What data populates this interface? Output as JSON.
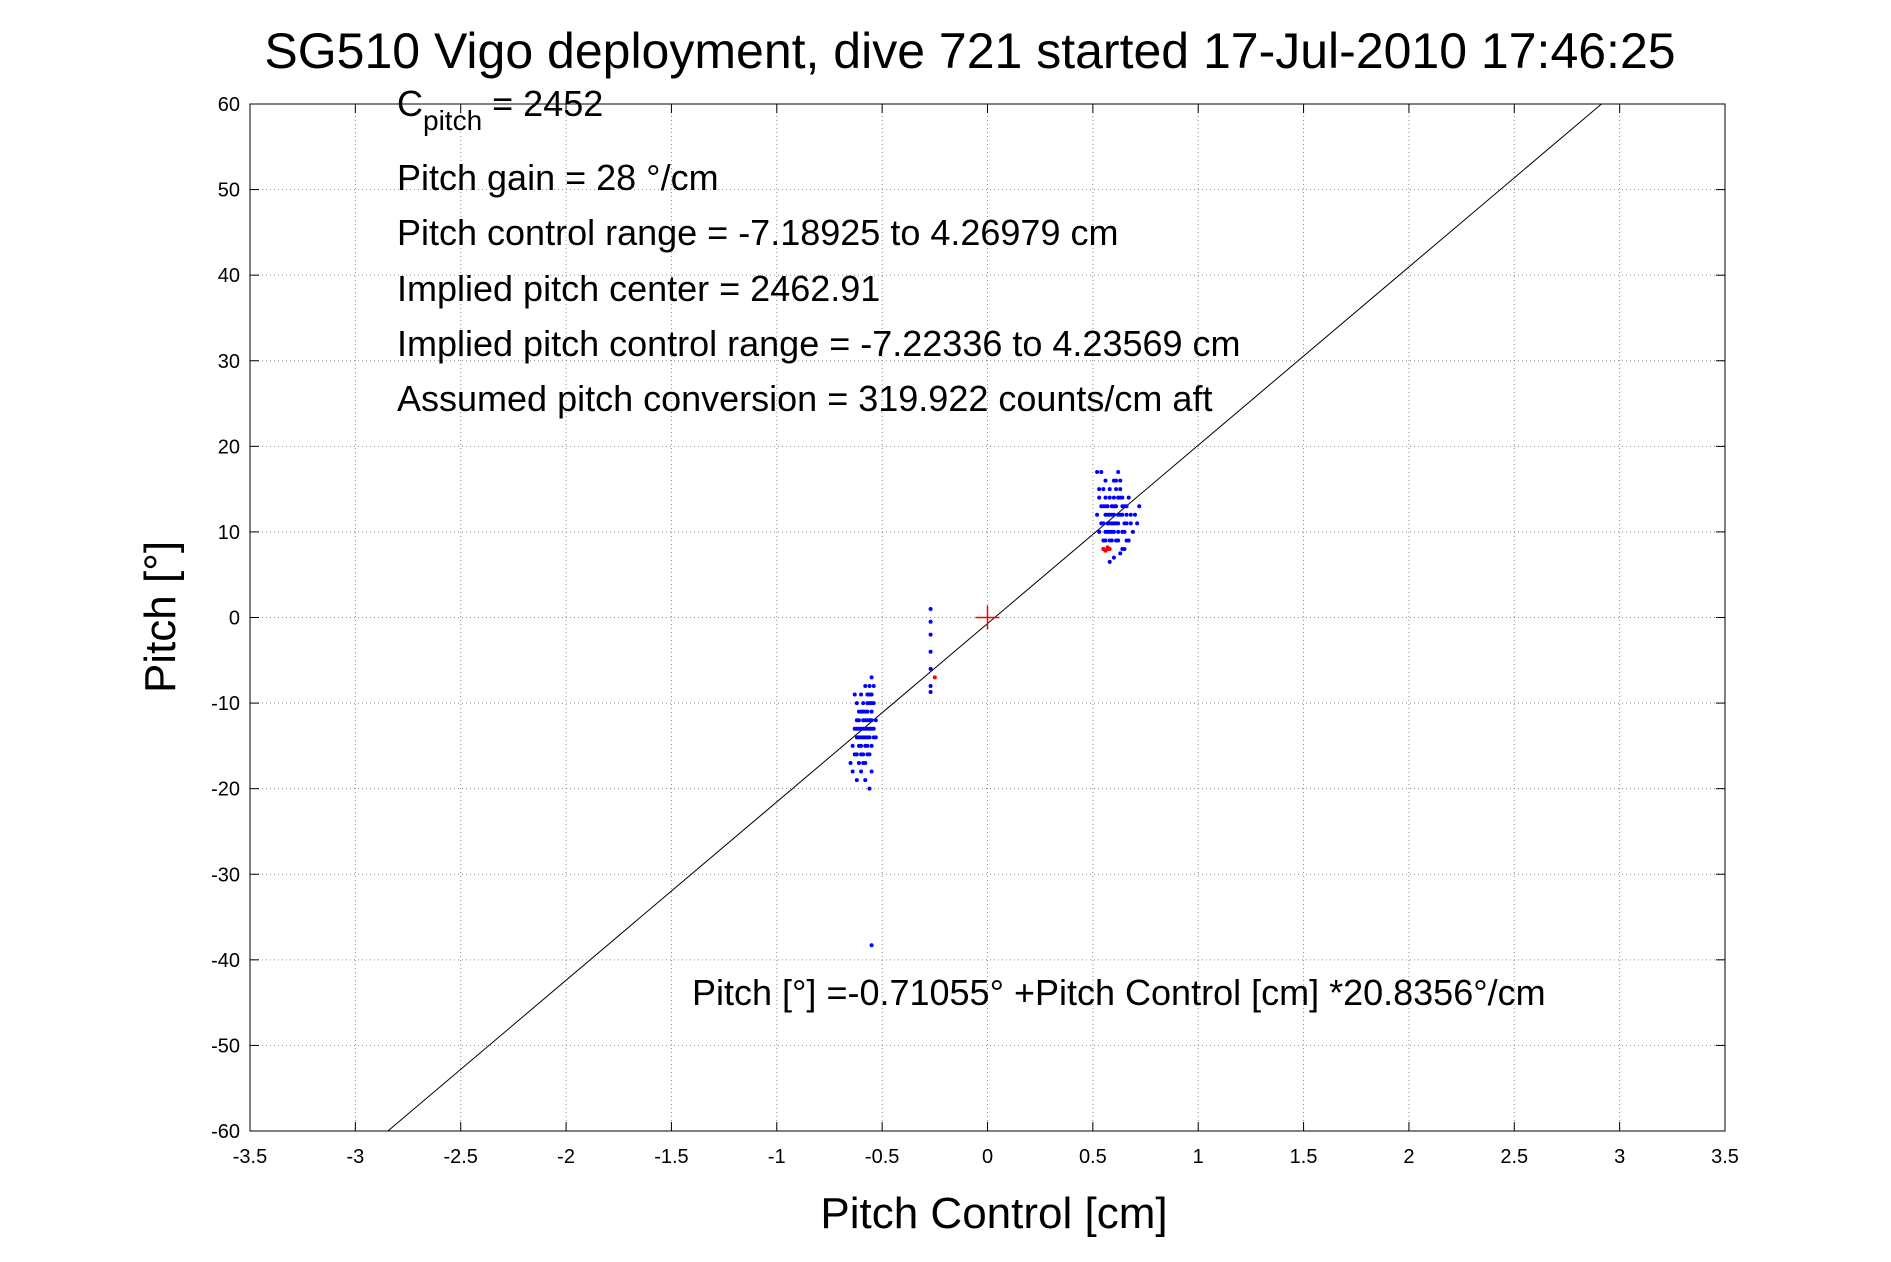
{
  "chart_data": {
    "type": "scatter",
    "title": "SG510 Vigo deployment, dive 721 started 17-Jul-2010 17:46:25",
    "xlabel": "Pitch Control [cm]",
    "ylabel": "Pitch [°]",
    "xlim": [
      -3.5,
      3.5
    ],
    "ylim": [
      -60,
      60
    ],
    "xticks": [
      -3.5,
      -3,
      -2.5,
      -2,
      -1.5,
      -1,
      -0.5,
      0,
      0.5,
      1,
      1.5,
      2,
      2.5,
      3,
      3.5
    ],
    "xtick_labels": [
      "-3.5",
      "-3",
      "-2.5",
      "-2",
      "-1.5",
      "-1",
      "-0.5",
      "0",
      "0.5",
      "1",
      "1.5",
      "2",
      "2.5",
      "3",
      "3.5"
    ],
    "yticks": [
      60,
      50,
      40,
      30,
      20,
      10,
      0,
      -10,
      -20,
      -30,
      -40,
      -50,
      -60
    ],
    "ytick_labels": [
      "60",
      "50",
      "40",
      "30",
      "20",
      "10",
      "0",
      "-10",
      "-20",
      "-30",
      "-40",
      "-50",
      "-60"
    ],
    "grid": true,
    "annotations": {
      "c_pitch_main": "C",
      "c_pitch_sub": "pitch",
      "c_pitch_value": " = 2452",
      "lines": [
        "Pitch gain = 28 °/cm",
        "Pitch control range = -7.18925 to 4.26979 cm",
        "Implied pitch center = 2462.91",
        "Implied pitch control range = -7.22336 to 4.23569 cm",
        "Assumed pitch conversion = 319.922 counts/cm aft"
      ],
      "fit_equation": "Pitch [°] =-0.71055° +Pitch Control [cm] *20.8356°/cm"
    },
    "fit_line": {
      "intercept": -0.71055,
      "slope": 20.8356,
      "color": "#000000"
    },
    "center_marker": {
      "x": 0,
      "y": 0,
      "color": "#ff0000"
    },
    "series": [
      {
        "color": "#0000ff",
        "points": [
          [
            -0.55,
            -7
          ],
          [
            -0.54,
            -8
          ],
          [
            -0.55,
            -9
          ],
          [
            -0.56,
            -10
          ],
          [
            -0.57,
            -11
          ],
          [
            -0.56,
            -12
          ],
          [
            -0.55,
            -13
          ],
          [
            -0.57,
            -14
          ],
          [
            -0.58,
            -12
          ],
          [
            -0.59,
            -13
          ],
          [
            -0.6,
            -14
          ],
          [
            -0.58,
            -15
          ],
          [
            -0.57,
            -16
          ],
          [
            -0.59,
            -17
          ],
          [
            -0.61,
            -15
          ],
          [
            -0.62,
            -16
          ],
          [
            -0.6,
            -18
          ],
          [
            -0.58,
            -19
          ],
          [
            -0.56,
            -20
          ],
          [
            -0.55,
            -18
          ],
          [
            -0.57,
            -9
          ],
          [
            -0.59,
            -10
          ],
          [
            -0.61,
            -11
          ],
          [
            -0.63,
            -13
          ],
          [
            -0.64,
            -15
          ],
          [
            -0.62,
            -12
          ],
          [
            -0.6,
            -11
          ],
          [
            -0.58,
            -8
          ],
          [
            -0.56,
            -9
          ],
          [
            -0.54,
            -10
          ],
          [
            -0.53,
            -12
          ],
          [
            -0.54,
            -14
          ],
          [
            -0.55,
            -15
          ],
          [
            -0.56,
            -16
          ],
          [
            -0.58,
            -17
          ],
          [
            -0.6,
            -16
          ],
          [
            -0.62,
            -14
          ],
          [
            -0.61,
            -13
          ],
          [
            -0.59,
            -12
          ],
          [
            -0.57,
            -13
          ],
          [
            -0.55,
            -11
          ],
          [
            -0.56,
            -14
          ],
          [
            -0.57,
            -12
          ],
          [
            -0.58,
            -13
          ],
          [
            -0.59,
            -14
          ],
          [
            -0.6,
            -13
          ],
          [
            -0.61,
            -12
          ],
          [
            -0.62,
            -10
          ],
          [
            -0.63,
            -9
          ],
          [
            -0.6,
            -9
          ],
          [
            -0.58,
            -11
          ],
          [
            -0.56,
            -8
          ],
          [
            -0.55,
            -10
          ],
          [
            -0.57,
            -15
          ],
          [
            -0.59,
            -16
          ],
          [
            -0.61,
            -17
          ],
          [
            -0.63,
            -16
          ],
          [
            -0.65,
            -17
          ],
          [
            -0.64,
            -18
          ],
          [
            -0.62,
            -19
          ],
          [
            -0.54,
            -13
          ],
          [
            -0.53,
            -14
          ],
          [
            -0.55,
            -12
          ],
          [
            -0.56,
            -13
          ],
          [
            -0.57,
            -10
          ],
          [
            -0.58,
            -14
          ],
          [
            -0.59,
            -11
          ],
          [
            -0.6,
            -15
          ],
          [
            -0.61,
            -14
          ],
          [
            -0.62,
            -13
          ],
          [
            -0.55,
            -38.3
          ],
          [
            -0.27,
            1
          ],
          [
            -0.27,
            -0.5
          ],
          [
            -0.27,
            -2
          ],
          [
            -0.27,
            -4
          ],
          [
            -0.27,
            -6
          ],
          [
            -0.27,
            -8
          ],
          [
            -0.27,
            -8.7
          ],
          [
            0.52,
            17
          ],
          [
            0.53,
            15
          ],
          [
            0.54,
            13
          ],
          [
            0.55,
            11
          ],
          [
            0.56,
            9
          ],
          [
            0.57,
            8
          ],
          [
            0.58,
            10
          ],
          [
            0.59,
            12
          ],
          [
            0.6,
            14
          ],
          [
            0.61,
            16
          ],
          [
            0.62,
            17
          ],
          [
            0.63,
            15
          ],
          [
            0.64,
            13
          ],
          [
            0.65,
            11
          ],
          [
            0.66,
            9
          ],
          [
            0.64,
            8
          ],
          [
            0.62,
            10
          ],
          [
            0.6,
            12
          ],
          [
            0.58,
            14
          ],
          [
            0.56,
            16
          ],
          [
            0.54,
            17
          ],
          [
            0.55,
            15
          ],
          [
            0.57,
            13
          ],
          [
            0.59,
            11
          ],
          [
            0.61,
            9
          ],
          [
            0.63,
            7.5
          ],
          [
            0.65,
            10
          ],
          [
            0.66,
            12
          ],
          [
            0.67,
            14
          ],
          [
            0.68,
            12
          ],
          [
            0.7,
            12
          ],
          [
            0.71,
            11
          ],
          [
            0.72,
            13
          ],
          [
            0.69,
            10
          ],
          [
            0.67,
            9
          ],
          [
            0.65,
            8
          ],
          [
            0.6,
            7
          ],
          [
            0.58,
            6.5
          ],
          [
            0.55,
            8
          ],
          [
            0.53,
            10
          ],
          [
            0.52,
            12
          ],
          [
            0.53,
            14
          ],
          [
            0.56,
            12
          ],
          [
            0.58,
            11
          ],
          [
            0.6,
            10
          ],
          [
            0.62,
            12
          ],
          [
            0.64,
            14
          ],
          [
            0.63,
            16
          ],
          [
            0.61,
            15
          ],
          [
            0.59,
            13
          ],
          [
            0.57,
            11
          ],
          [
            0.55,
            9
          ],
          [
            0.54,
            11
          ],
          [
            0.56,
            13
          ],
          [
            0.58,
            15
          ],
          [
            0.6,
            16
          ],
          [
            0.62,
            14
          ],
          [
            0.63,
            12
          ],
          [
            0.61,
            11
          ],
          [
            0.59,
            9
          ],
          [
            0.57,
            10
          ],
          [
            0.56,
            14
          ],
          [
            0.58,
            12
          ],
          [
            0.6,
            13
          ],
          [
            0.62,
            11
          ],
          [
            0.64,
            10
          ],
          [
            0.66,
            11
          ],
          [
            0.65,
            13
          ],
          [
            0.63,
            14
          ],
          [
            0.61,
            13
          ],
          [
            0.59,
            10
          ],
          [
            0.57,
            12
          ],
          [
            0.55,
            13
          ],
          [
            0.56,
            10
          ],
          [
            0.58,
            9
          ],
          [
            0.6,
            11
          ],
          [
            0.62,
            9
          ],
          [
            0.64,
            12
          ],
          [
            0.66,
            13
          ],
          [
            0.68,
            11
          ]
        ]
      },
      {
        "color": "#ff0000",
        "points": [
          [
            -0.25,
            -7
          ],
          [
            0.55,
            8
          ],
          [
            0.56,
            7.8
          ],
          [
            0.57,
            8.2
          ],
          [
            0.58,
            8
          ]
        ]
      }
    ]
  }
}
